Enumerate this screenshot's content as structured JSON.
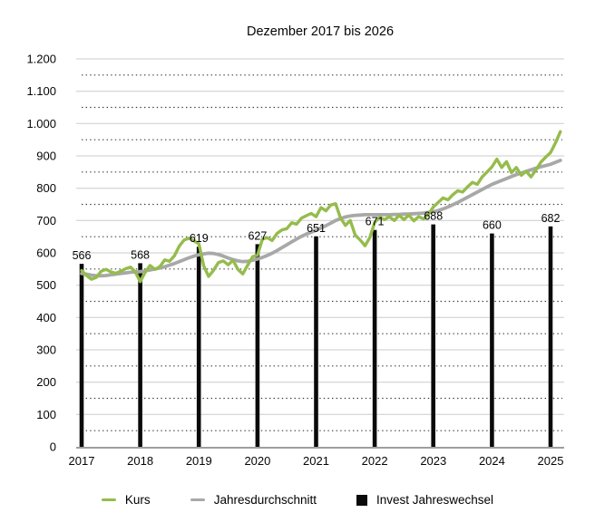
{
  "title": "Dezember 2017 bis 2026",
  "legend": {
    "kurs": "Kurs",
    "avg": "Jahresdurchschnitt",
    "invest": "Invest Jahreswechsel"
  },
  "colors": {
    "kurs": "#95bc4c",
    "avg": "#a8a8a8",
    "invest": "#0a0a0a",
    "grid_solid": "#cbcbcb",
    "grid_dotted": "#3c3c3c",
    "axis": "#9e9e9e",
    "text": "#050505"
  },
  "chart_data": {
    "type": "combo-line-bar",
    "title": "Dezember 2017 bis 2026",
    "ylim": [
      0,
      1200
    ],
    "y_tick_step": 100,
    "y_tick_labels_top_down": [
      "1.200",
      "1.100",
      "1.000",
      "900",
      "800",
      "700",
      "600",
      "500",
      "400",
      "300",
      "200",
      "100",
      "0"
    ],
    "minor_gridlines": "dotted, every 100 units starting at 50 (50,150,...,1150)",
    "grid": "horizontal only",
    "legend_position": "bottom",
    "x_tick_labels": [
      "2017",
      "2018",
      "2019",
      "2020",
      "2021",
      "2022",
      "2023",
      "2024",
      "2025"
    ],
    "bars": {
      "name": "Invest Jahreswechsel",
      "note": "one bar at each turn of year (December), height = value, label above bar",
      "years": [
        "2017",
        "2018",
        "2019",
        "2020",
        "2021",
        "2022",
        "2023",
        "2024",
        "2025"
      ],
      "values": [
        566,
        568,
        619,
        627,
        651,
        671,
        688,
        660,
        682
      ]
    },
    "series": [
      {
        "name": "Kurs",
        "interval": "monthly",
        "start": "Dezember 2017",
        "end": "Februar 2026",
        "values": [
          545,
          530,
          518,
          524,
          543,
          549,
          541,
          537,
          543,
          551,
          556,
          541,
          511,
          540,
          561,
          549,
          557,
          578,
          574,
          591,
          621,
          640,
          645,
          637,
          628,
          560,
          527,
          546,
          570,
          575,
          563,
          577,
          549,
          535,
          562,
          588,
          593,
          642,
          647,
          638,
          660,
          671,
          675,
          693,
          689,
          707,
          715,
          722,
          712,
          740,
          730,
          748,
          752,
          708,
          685,
          700,
          655,
          640,
          622,
          647,
          694,
          710,
          703,
          712,
          700,
          716,
          703,
          717,
          699,
          712,
          705,
          720,
          742,
          756,
          770,
          764,
          780,
          792,
          788,
          804,
          818,
          812,
          835,
          850,
          866,
          890,
          864,
          882,
          848,
          864,
          840,
          852,
          835,
          856,
          880,
          896,
          910,
          940,
          975
        ]
      },
      {
        "name": "Jahresdurchschnitt",
        "interval": "monthly",
        "start": "Dezember 2017",
        "end": "Februar 2026",
        "values": [
          536,
          534,
          531,
          529,
          529,
          530,
          532,
          534,
          536,
          538,
          540,
          541,
          542,
          544,
          547,
          550,
          553,
          557,
          562,
          567,
          573,
          579,
          585,
          590,
          594,
          597,
          599,
          598,
          595,
          590,
          584,
          579,
          575,
          573,
          574,
          577,
          581,
          586,
          592,
          599,
          607,
          616,
          625,
          634,
          643,
          651,
          658,
          664,
          670,
          677,
          684,
          692,
          700,
          706,
          711,
          714,
          716,
          717,
          718,
          718,
          718,
          718,
          718,
          718,
          719,
          719,
          720,
          720,
          721,
          722,
          723,
          725,
          727,
          731,
          736,
          742,
          749,
          756,
          764,
          772,
          780,
          788,
          796,
          804,
          812,
          818,
          824,
          830,
          836,
          842,
          847,
          852,
          857,
          862,
          866,
          870,
          874,
          880,
          886
        ]
      }
    ]
  }
}
